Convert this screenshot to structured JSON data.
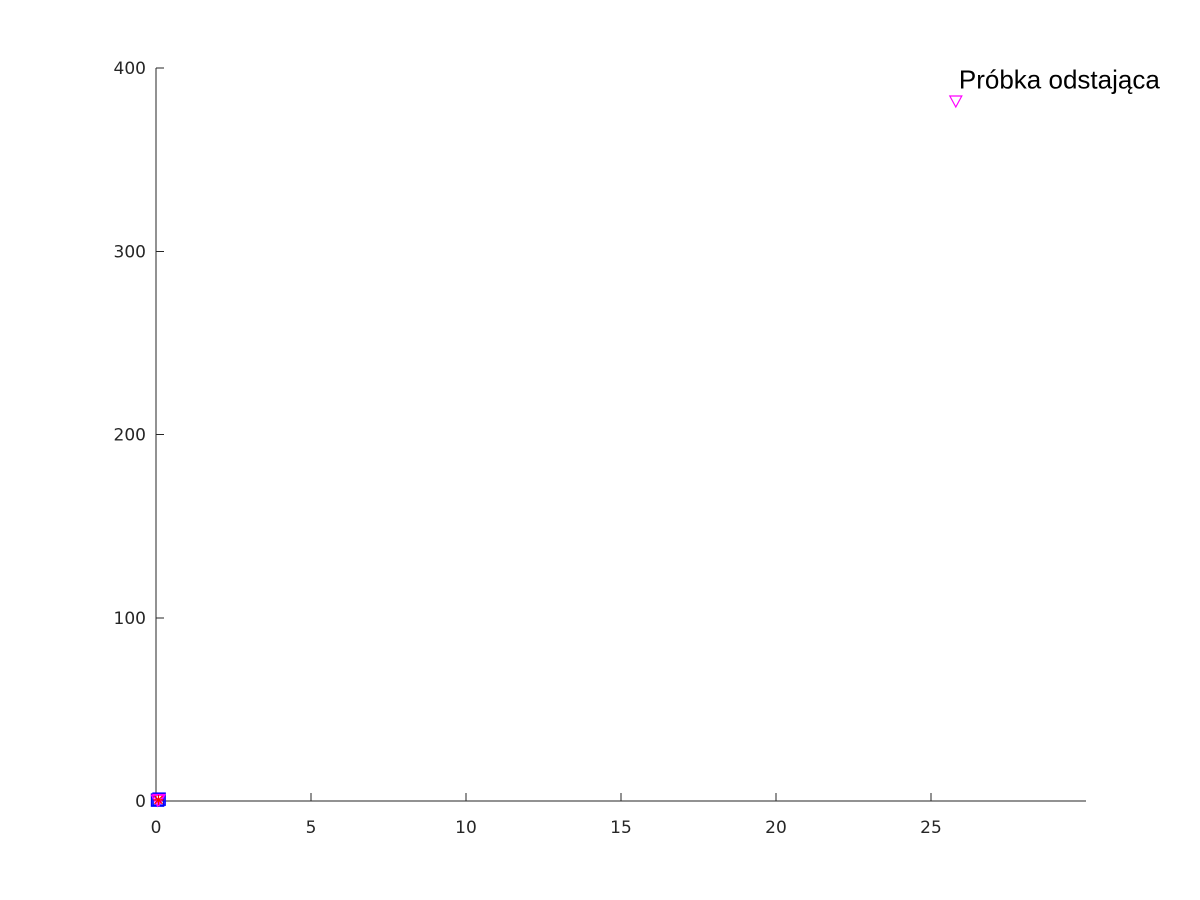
{
  "chart_data": {
    "type": "scatter",
    "title": "",
    "xlabel": "",
    "ylabel": "",
    "xlim": [
      0,
      30
    ],
    "ylim": [
      0,
      400
    ],
    "x_ticks": [
      0,
      5,
      10,
      15,
      20,
      25
    ],
    "y_ticks": [
      0,
      100,
      200,
      300,
      400
    ],
    "grid": false,
    "legend": "none",
    "box": false,
    "series": [
      {
        "marker": "square",
        "color": "#0000ff",
        "points": [
          {
            "x": 0.05,
            "y": 0.5
          },
          {
            "x": 0.1,
            "y": 1.0
          }
        ]
      },
      {
        "marker": "triangle-down",
        "color": "#ff00ff",
        "points": [
          {
            "x": 0.05,
            "y": 0.4
          },
          {
            "x": 0.1,
            "y": 0.8
          },
          {
            "x": 25.8,
            "y": 382
          }
        ]
      },
      {
        "marker": "asterisk",
        "color": "#ff0000",
        "points": [
          {
            "x": 0.08,
            "y": 0.6
          }
        ]
      }
    ],
    "annotations": [
      {
        "text": "Próbka odstająca",
        "x": 25.9,
        "y": 390
      }
    ]
  }
}
